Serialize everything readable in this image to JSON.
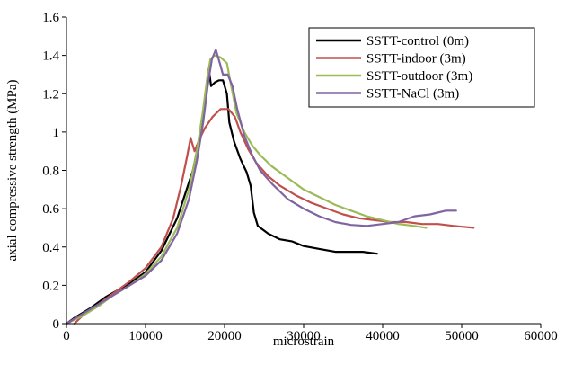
{
  "chart_data": {
    "type": "line",
    "xlabel": "microstrain",
    "ylabel": "axial compressive strength (MPa)",
    "xlim": [
      0,
      60000
    ],
    "ylim": [
      0,
      1.6
    ],
    "xticks": [
      0,
      10000,
      20000,
      30000,
      40000,
      50000,
      60000
    ],
    "yticks": [
      0,
      0.2,
      0.4,
      0.6,
      0.8,
      1,
      1.2,
      1.4,
      1.6
    ],
    "grid": false,
    "legend_position": "top-right",
    "series": [
      {
        "name": "SSTT-control (0m)",
        "color": "#000000",
        "points": [
          [
            0,
            0
          ],
          [
            1000,
            0.03
          ],
          [
            3000,
            0.08
          ],
          [
            5000,
            0.14
          ],
          [
            8000,
            0.21
          ],
          [
            10000,
            0.27
          ],
          [
            12000,
            0.38
          ],
          [
            14000,
            0.55
          ],
          [
            16000,
            0.8
          ],
          [
            17000,
            1.0
          ],
          [
            17600,
            1.2
          ],
          [
            18000,
            1.33
          ],
          [
            18300,
            1.24
          ],
          [
            18800,
            1.26
          ],
          [
            19300,
            1.27
          ],
          [
            19800,
            1.27
          ],
          [
            20300,
            1.2
          ],
          [
            20600,
            1.05
          ],
          [
            21200,
            0.95
          ],
          [
            22000,
            0.86
          ],
          [
            22800,
            0.79
          ],
          [
            23300,
            0.72
          ],
          [
            23700,
            0.58
          ],
          [
            24200,
            0.51
          ],
          [
            25500,
            0.47
          ],
          [
            27000,
            0.44
          ],
          [
            28500,
            0.43
          ],
          [
            30000,
            0.405
          ],
          [
            32000,
            0.39
          ],
          [
            34000,
            0.375
          ],
          [
            36000,
            0.375
          ],
          [
            37500,
            0.375
          ],
          [
            39300,
            0.365
          ]
        ]
      },
      {
        "name": "SSTT-indoor (3m)",
        "color": "#c0504d",
        "points": [
          [
            1000,
            0
          ],
          [
            2000,
            0.04
          ],
          [
            4000,
            0.1
          ],
          [
            6000,
            0.16
          ],
          [
            8000,
            0.22
          ],
          [
            10000,
            0.29
          ],
          [
            12000,
            0.4
          ],
          [
            13500,
            0.55
          ],
          [
            14500,
            0.72
          ],
          [
            15300,
            0.88
          ],
          [
            15700,
            0.97
          ],
          [
            16200,
            0.9
          ],
          [
            16800,
            0.96
          ],
          [
            17500,
            1.02
          ],
          [
            18500,
            1.08
          ],
          [
            19500,
            1.12
          ],
          [
            20500,
            1.12
          ],
          [
            21300,
            1.08
          ],
          [
            22000,
            1.0
          ],
          [
            23000,
            0.91
          ],
          [
            24000,
            0.84
          ],
          [
            25500,
            0.77
          ],
          [
            27000,
            0.72
          ],
          [
            29000,
            0.67
          ],
          [
            31000,
            0.63
          ],
          [
            33000,
            0.6
          ],
          [
            35000,
            0.57
          ],
          [
            37000,
            0.55
          ],
          [
            39000,
            0.54
          ],
          [
            41000,
            0.53
          ],
          [
            43000,
            0.53
          ],
          [
            45000,
            0.52
          ],
          [
            47000,
            0.52
          ],
          [
            49000,
            0.51
          ],
          [
            51500,
            0.5
          ]
        ]
      },
      {
        "name": "SSTT-outdoor (3m)",
        "color": "#9bbb59",
        "points": [
          [
            0,
            0
          ],
          [
            2000,
            0.04
          ],
          [
            4000,
            0.09
          ],
          [
            6000,
            0.15
          ],
          [
            8000,
            0.2
          ],
          [
            10000,
            0.26
          ],
          [
            12000,
            0.35
          ],
          [
            14000,
            0.5
          ],
          [
            15500,
            0.7
          ],
          [
            16500,
            0.9
          ],
          [
            17300,
            1.12
          ],
          [
            17800,
            1.28
          ],
          [
            18200,
            1.38
          ],
          [
            18700,
            1.4
          ],
          [
            19500,
            1.39
          ],
          [
            20300,
            1.36
          ],
          [
            20800,
            1.25
          ],
          [
            21500,
            1.1
          ],
          [
            22500,
            1.0
          ],
          [
            23500,
            0.93
          ],
          [
            24500,
            0.88
          ],
          [
            26000,
            0.82
          ],
          [
            28000,
            0.76
          ],
          [
            30000,
            0.7
          ],
          [
            32000,
            0.66
          ],
          [
            34000,
            0.62
          ],
          [
            36000,
            0.59
          ],
          [
            38000,
            0.56
          ],
          [
            40000,
            0.54
          ],
          [
            42000,
            0.52
          ],
          [
            44000,
            0.51
          ],
          [
            45500,
            0.5
          ]
        ]
      },
      {
        "name": "SSTT-NaCl (3m)",
        "color": "#8064a2",
        "points": [
          [
            0,
            0
          ],
          [
            2000,
            0.05
          ],
          [
            4000,
            0.1
          ],
          [
            6000,
            0.15
          ],
          [
            8000,
            0.2
          ],
          [
            10000,
            0.25
          ],
          [
            12000,
            0.33
          ],
          [
            14000,
            0.47
          ],
          [
            15500,
            0.65
          ],
          [
            16500,
            0.85
          ],
          [
            17300,
            1.05
          ],
          [
            17900,
            1.25
          ],
          [
            18400,
            1.38
          ],
          [
            18900,
            1.43
          ],
          [
            19400,
            1.36
          ],
          [
            19800,
            1.3
          ],
          [
            20400,
            1.3
          ],
          [
            21000,
            1.24
          ],
          [
            21600,
            1.12
          ],
          [
            22500,
            0.98
          ],
          [
            23500,
            0.88
          ],
          [
            24500,
            0.8
          ],
          [
            26000,
            0.73
          ],
          [
            28000,
            0.65
          ],
          [
            30000,
            0.6
          ],
          [
            32000,
            0.56
          ],
          [
            34000,
            0.53
          ],
          [
            36000,
            0.515
          ],
          [
            38000,
            0.51
          ],
          [
            40000,
            0.52
          ],
          [
            42000,
            0.53
          ],
          [
            44000,
            0.56
          ],
          [
            46000,
            0.57
          ],
          [
            48000,
            0.59
          ],
          [
            49300,
            0.59
          ]
        ]
      }
    ]
  }
}
